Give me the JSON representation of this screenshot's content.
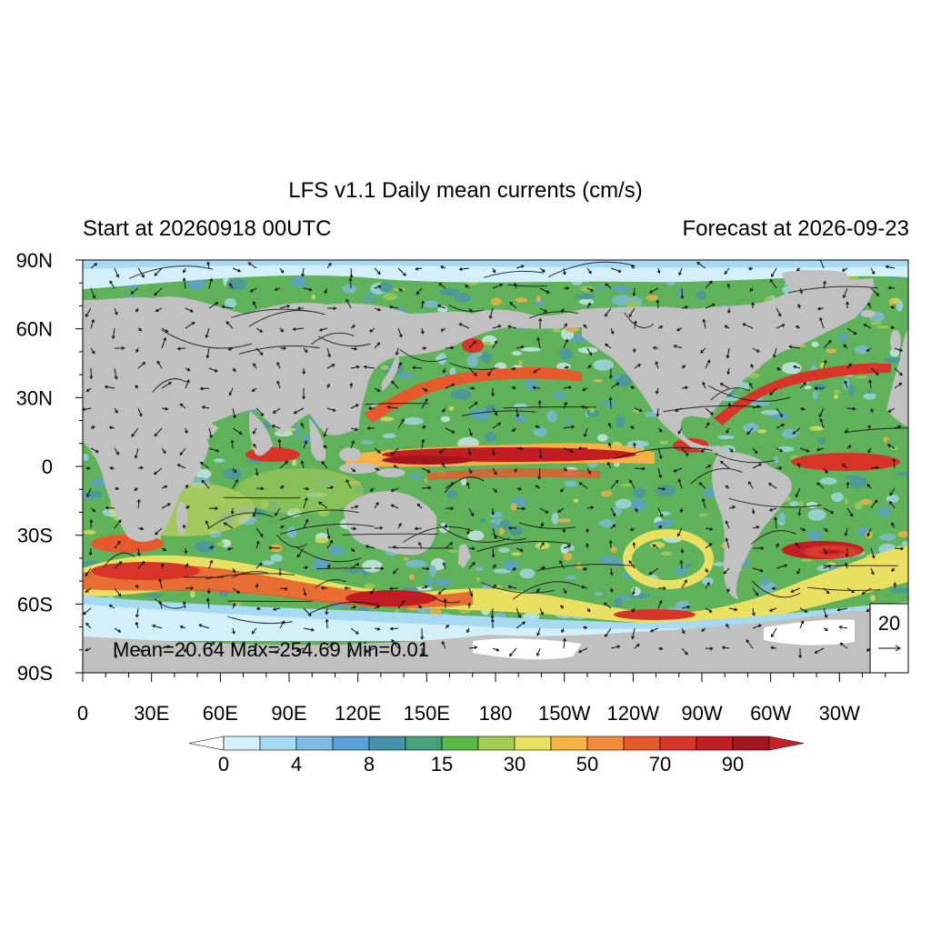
{
  "title": "LFS v1.1 Daily mean currents (cm/s)",
  "start_label": "Start at 20260918 00UTC",
  "forecast_label": "Forecast at 2026-09-23",
  "stats_label": "Mean=20.64  Max=254.69  Min=0.01",
  "reference_vector_label": "20",
  "lat_ticks": [
    "90N",
    "60N",
    "30N",
    "0",
    "30S",
    "60S",
    "90S"
  ],
  "lon_ticks": [
    "0",
    "30E",
    "60E",
    "90E",
    "120E",
    "150E",
    "180",
    "150W",
    "120W",
    "90W",
    "60W",
    "30W"
  ],
  "colorbar": {
    "labels": [
      "0",
      "4",
      "8",
      "15",
      "30",
      "50",
      "70",
      "90"
    ],
    "colors": [
      "#ffffff",
      "#d3eff9",
      "#a6d9f2",
      "#7fbbe6",
      "#5b9fd8",
      "#4892ab",
      "#46a07a",
      "#58b947",
      "#a4cc55",
      "#e9e062",
      "#f6b245",
      "#f28a3a",
      "#e7582b",
      "#d83428",
      "#c11d23",
      "#a3161d",
      "#c4232a"
    ]
  },
  "colors": {
    "land": "#c0c0c0",
    "ice": "#ffffff",
    "ocean_base": "#5fb15a"
  }
}
